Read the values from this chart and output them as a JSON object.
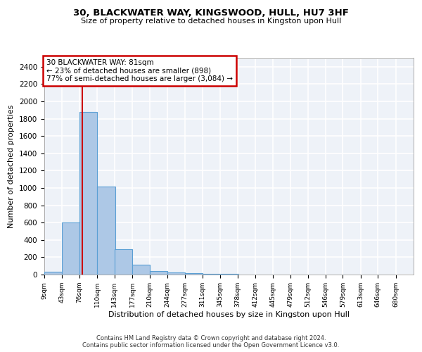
{
  "title": "30, BLACKWATER WAY, KINGSWOOD, HULL, HU7 3HF",
  "subtitle": "Size of property relative to detached houses in Kingston upon Hull",
  "xlabel": "Distribution of detached houses by size in Kingston upon Hull",
  "ylabel": "Number of detached properties",
  "footer_line1": "Contains HM Land Registry data © Crown copyright and database right 2024.",
  "footer_line2": "Contains public sector information licensed under the Open Government Licence v3.0.",
  "annotation_line1": "30 BLACKWATER WAY: 81sqm",
  "annotation_line2": "← 23% of detached houses are smaller (898)",
  "annotation_line3": "77% of semi-detached houses are larger (3,084) →",
  "bin_labels": [
    "9sqm",
    "43sqm",
    "76sqm",
    "110sqm",
    "143sqm",
    "177sqm",
    "210sqm",
    "244sqm",
    "277sqm",
    "311sqm",
    "345sqm",
    "378sqm",
    "412sqm",
    "445sqm",
    "479sqm",
    "512sqm",
    "546sqm",
    "579sqm",
    "613sqm",
    "646sqm",
    "680sqm"
  ],
  "bin_edges": [
    9,
    43,
    76,
    110,
    143,
    177,
    210,
    244,
    277,
    311,
    345,
    378,
    412,
    445,
    479,
    512,
    546,
    579,
    613,
    646,
    680
  ],
  "bar_heights": [
    30,
    600,
    1880,
    1020,
    290,
    110,
    40,
    25,
    15,
    8,
    5,
    3,
    2,
    2,
    1,
    1,
    1,
    0,
    0,
    0
  ],
  "bar_color": "#adc8e6",
  "bar_edge_color": "#5a9fd4",
  "red_line_x": 81,
  "ylim": [
    0,
    2500
  ],
  "yticks": [
    0,
    200,
    400,
    600,
    800,
    1000,
    1200,
    1400,
    1600,
    1800,
    2000,
    2200,
    2400
  ],
  "background_color": "#eef2f8",
  "grid_color": "#ffffff",
  "annotation_box_color": "#ffffff",
  "annotation_box_edge": "#cc0000",
  "red_line_color": "#cc0000"
}
